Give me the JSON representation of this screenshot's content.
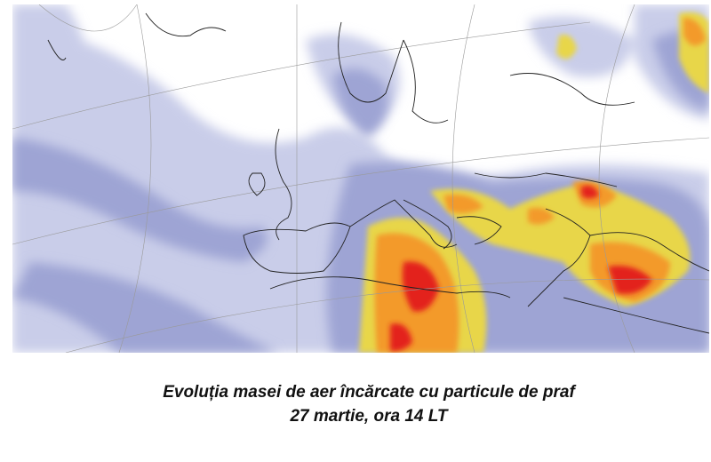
{
  "caption": {
    "line1": "Evoluția masei de aer încărcate cu particule de praf",
    "line2": "27 martie, ora 14 LT"
  }
}
